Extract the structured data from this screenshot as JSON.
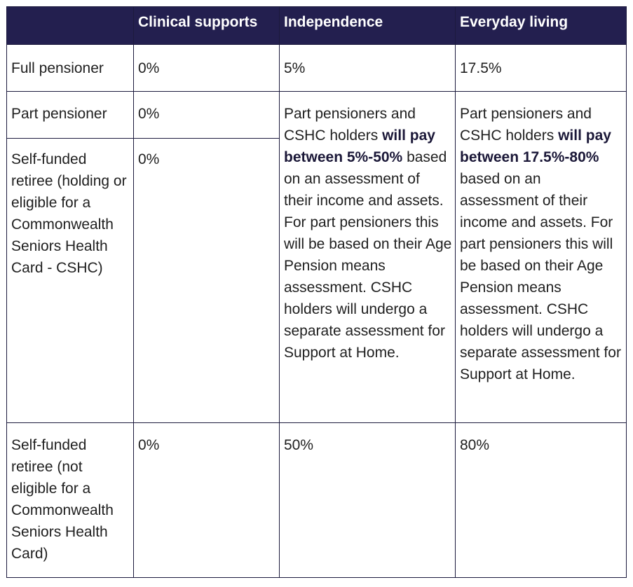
{
  "table": {
    "headers": [
      "",
      "Clinical supports",
      "Independence",
      "Everyday living"
    ],
    "rows": {
      "full": {
        "label": "Full pensioner",
        "clinical": "0%",
        "independence": "5%",
        "everyday": "17.5%"
      },
      "part": {
        "label": "Part pensioner",
        "clinical": "0%"
      },
      "self_cshc": {
        "label": "Self-funded retiree (holding or eligible for a Commonwealth Seniors Health Card - CSHC)",
        "clinical": "0%"
      },
      "merged_independence": {
        "pre": "Part pensioners and CSHC holders ",
        "bold": "will pay between 5%-50%",
        "post": " based on an assessment of their income and assets. For part pensioners this will be based on their Age Pension means assessment. CSHC holders will undergo a separate assessment for Support at Home."
      },
      "merged_everyday": {
        "pre": "Part pensioners and CSHC holders ",
        "bold": "will pay between 17.5%-80%",
        "post": " based on an assessment of their income and assets. For part pensioners this will be based on their Age Pension means assessment. CSHC holders will undergo a separate assessment for Support at Home."
      },
      "self_no_cshc": {
        "label": "Self-funded retiree (not eligible for a Commonwealth Seniors Health Card)",
        "clinical": "0%",
        "independence": "50%",
        "everyday": "80%"
      }
    }
  }
}
